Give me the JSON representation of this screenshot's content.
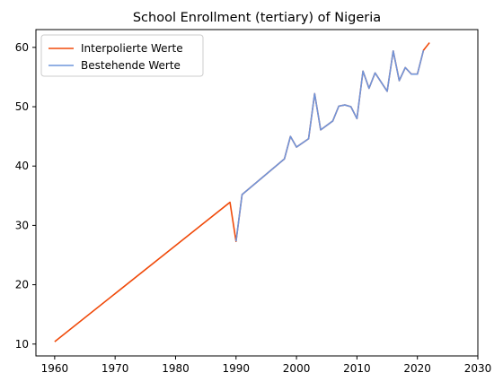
{
  "chart_data": {
    "type": "line",
    "title": "School Enrollment (tertiary) of Nigeria",
    "xlabel": "",
    "ylabel": "",
    "xlim": [
      1956.9,
      2030
    ],
    "ylim": [
      8.0,
      63.0
    ],
    "xticks": [
      1960,
      1970,
      1980,
      1990,
      2000,
      2010,
      2020,
      2030
    ],
    "yticks": [
      10,
      20,
      30,
      40,
      50,
      60
    ],
    "grid": false,
    "legend_position": "top-left",
    "series": [
      {
        "name": "Interpolierte Werte",
        "color": "#f04a0a",
        "x": [
          1960,
          1989,
          1990,
          1991,
          1998,
          1999,
          2000,
          2002,
          2003,
          2004,
          2006,
          2007,
          2008,
          2009,
          2010,
          2011,
          2012,
          2013,
          2015,
          2016,
          2017,
          2018,
          2019,
          2020,
          2021,
          2022
        ],
        "y": [
          10.4,
          33.9,
          27.3,
          35.2,
          41.2,
          45.0,
          43.2,
          44.6,
          52.2,
          46.1,
          47.6,
          50.1,
          50.3,
          50.0,
          48.0,
          56.0,
          53.1,
          55.7,
          52.6,
          59.4,
          54.4,
          56.6,
          55.5,
          55.5,
          59.5,
          60.8
        ]
      },
      {
        "name": "Bestehende Werte",
        "color": "#6f95db",
        "x": [
          1990,
          1991,
          1998,
          1999,
          2000,
          2002,
          2003,
          2004,
          2006,
          2007,
          2008,
          2009,
          2010,
          2011,
          2012,
          2013,
          2015,
          2016,
          2017,
          2018,
          2019,
          2020,
          2021
        ],
        "y": [
          27.3,
          35.2,
          41.2,
          45.0,
          43.2,
          44.6,
          52.2,
          46.1,
          47.6,
          50.1,
          50.3,
          50.0,
          48.0,
          56.0,
          53.1,
          55.7,
          52.6,
          59.4,
          54.4,
          56.6,
          55.5,
          55.5,
          59.5
        ]
      }
    ]
  }
}
